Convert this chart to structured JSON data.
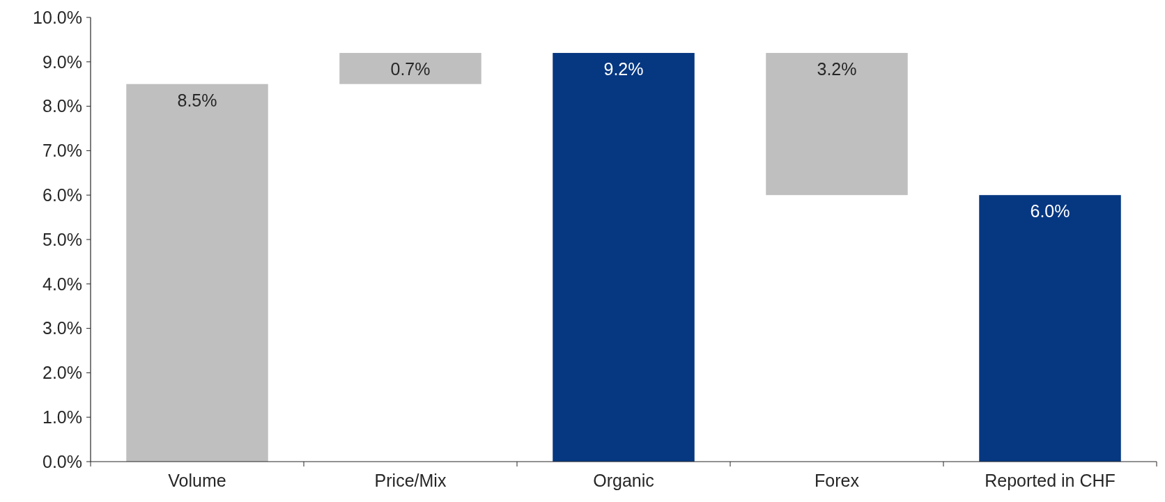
{
  "chart_data": {
    "type": "bar",
    "categories": [
      "Volume",
      "Price/Mix",
      "Organic",
      "Forex",
      "Reported in CHF"
    ],
    "values": [
      8.5,
      0.7,
      9.2,
      3.2,
      6.0
    ],
    "base": [
      0,
      8.5,
      0,
      6.0,
      0
    ],
    "colors": [
      "#bfbfbf",
      "#bfbfbf",
      "#063781",
      "#bfbfbf",
      "#063781"
    ],
    "value_labels": [
      "8.5%",
      "0.7%",
      "9.2%",
      "3.2%",
      "6.0%"
    ],
    "ylim": [
      0,
      10
    ],
    "yticks": [
      {
        "value": 0,
        "label": "0.0%"
      },
      {
        "value": 1,
        "label": "1.0%"
      },
      {
        "value": 2,
        "label": "2.0%"
      },
      {
        "value": 3,
        "label": "3.0%"
      },
      {
        "value": 4,
        "label": "4.0%"
      },
      {
        "value": 5,
        "label": "5.0%"
      },
      {
        "value": 6,
        "label": "6.0%"
      },
      {
        "value": 7,
        "label": "7.0%"
      },
      {
        "value": 8,
        "label": "8.0%"
      },
      {
        "value": 9,
        "label": "9.0%"
      },
      {
        "value": 10,
        "label": "10.0%"
      }
    ],
    "grid": false
  }
}
